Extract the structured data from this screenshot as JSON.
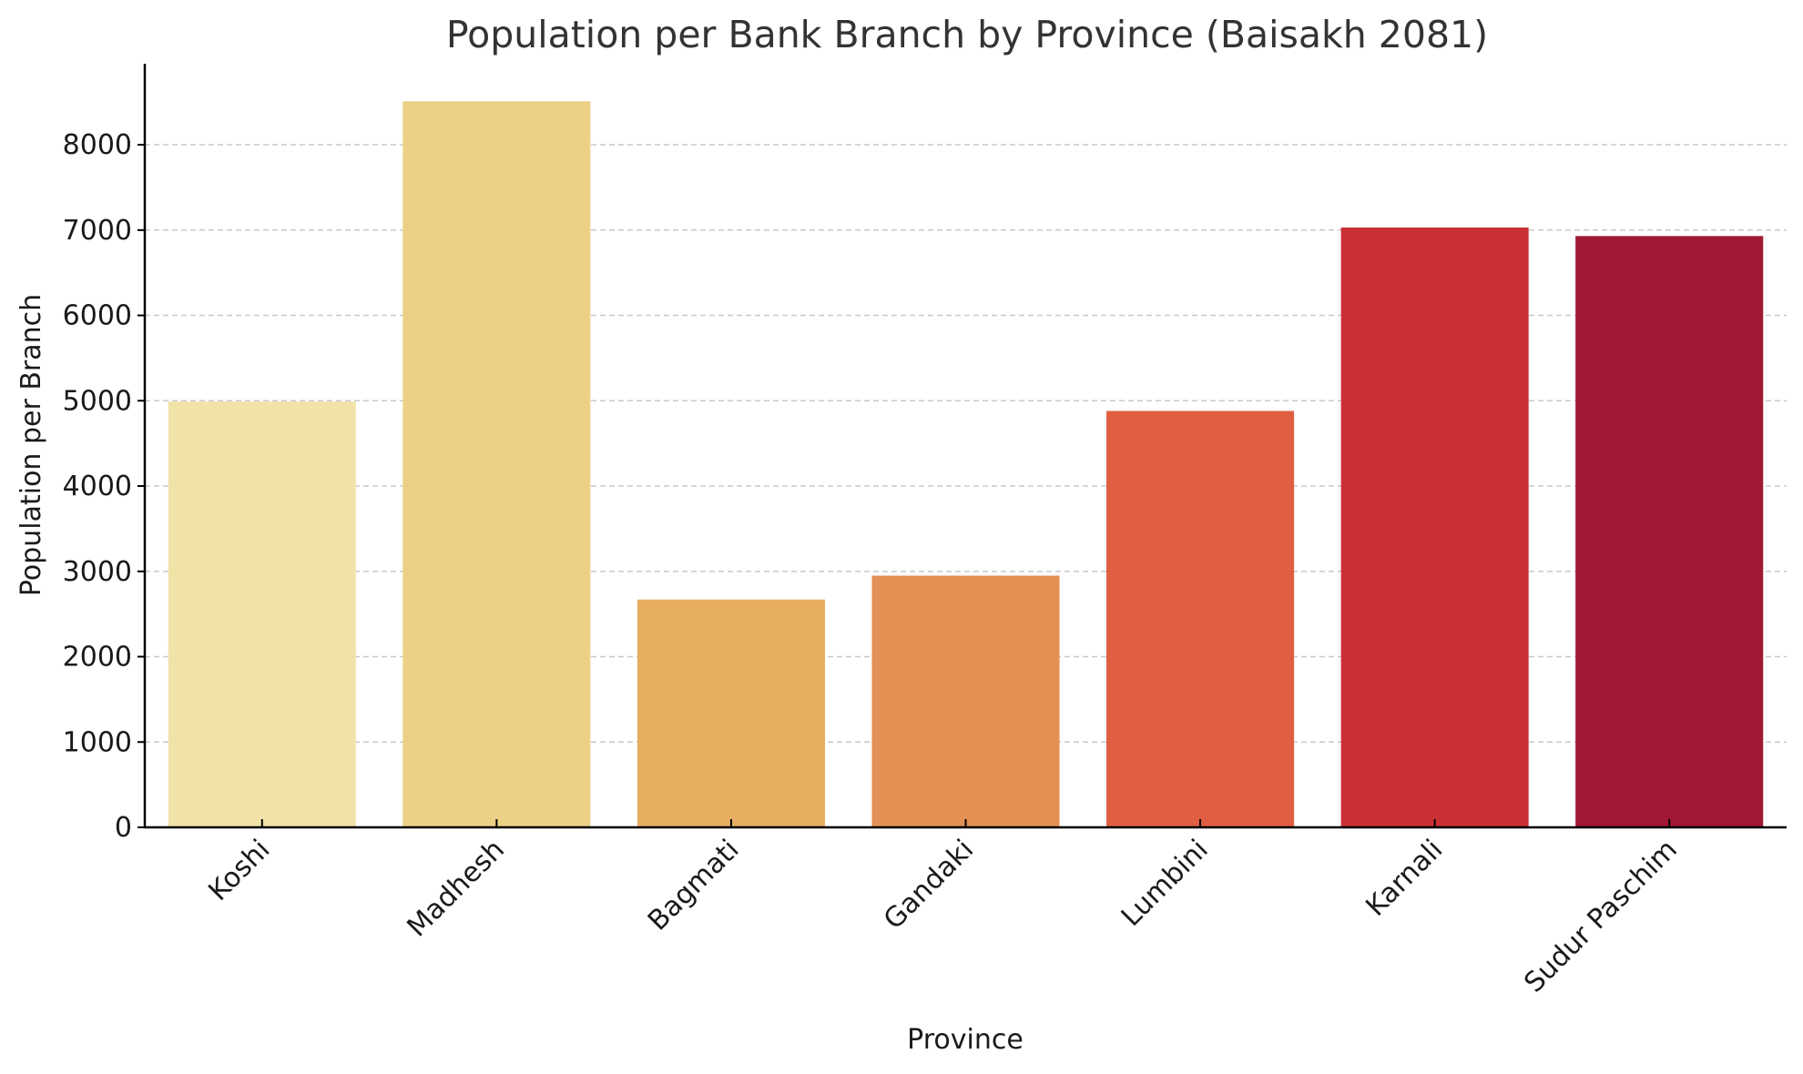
{
  "chart_data": {
    "type": "bar",
    "title": "Population per Bank Branch by Province (Baisakh 2081)",
    "xlabel": "Province",
    "ylabel": "Population per Branch",
    "categories": [
      "Koshi",
      "Madhesh",
      "Bagmati",
      "Gandaki",
      "Lumbini",
      "Karnali",
      "Sudur Paschim"
    ],
    "values": [
      4990,
      8510,
      2670,
      2950,
      4880,
      7030,
      6930
    ],
    "colors": [
      "#f1e3a8",
      "#ecd085",
      "#e7ae62",
      "#e39054",
      "#e05e42",
      "#c93034",
      "#a01834"
    ],
    "ylim": [
      0,
      8950
    ],
    "yticks": [
      0,
      1000,
      2000,
      3000,
      4000,
      5000,
      6000,
      7000,
      8000
    ],
    "grid": "y-dashed",
    "legend": "none"
  }
}
